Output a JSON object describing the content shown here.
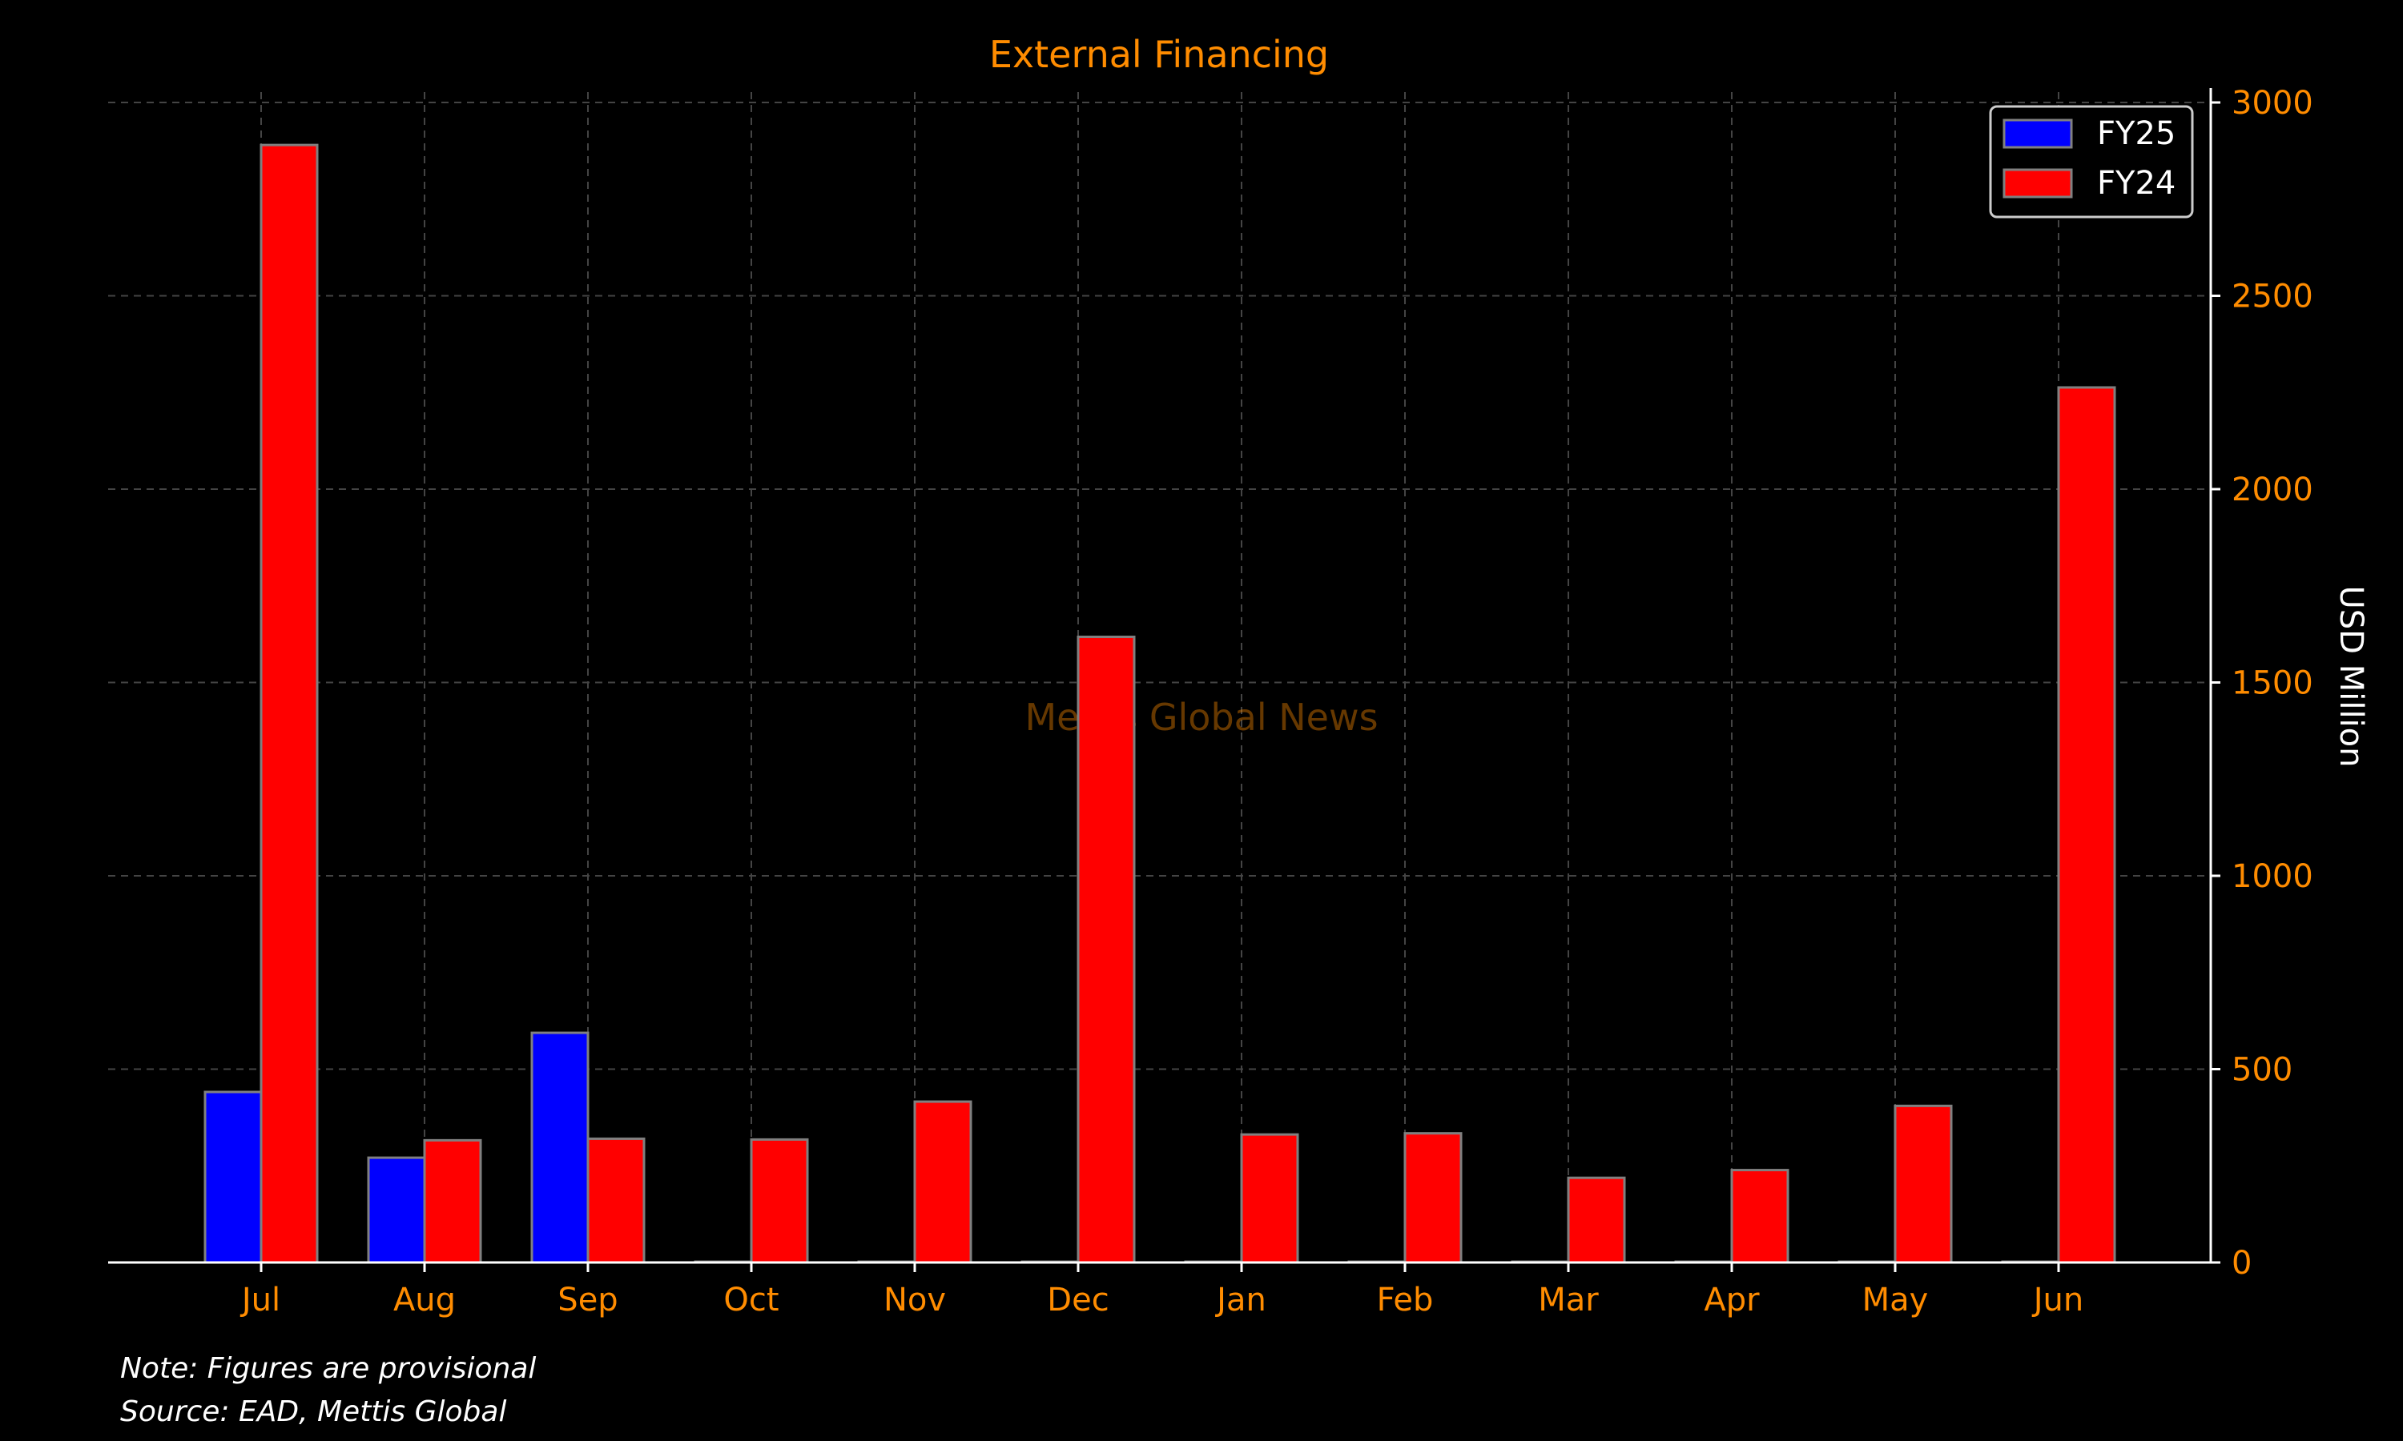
{
  "chart_data": {
    "type": "bar",
    "title": "External Financing",
    "xlabel": "",
    "ylabel": "USD Million",
    "watermark": "Mettis Global News",
    "categories": [
      "Jul",
      "Aug",
      "Sep",
      "Oct",
      "Nov",
      "Dec",
      "Jan",
      "Feb",
      "Mar",
      "Apr",
      "May",
      "Jun"
    ],
    "series": [
      {
        "name": "FY25",
        "color": "#0000ff",
        "values": [
          441,
          271,
          594,
          0,
          0,
          0,
          0,
          0,
          0,
          0,
          0,
          0
        ]
      },
      {
        "name": "FY24",
        "color": "#ff0000",
        "values": [
          2890,
          316,
          320,
          318,
          416,
          1618,
          331,
          334,
          219,
          239,
          405,
          2263
        ]
      }
    ],
    "ylim": [
      0,
      3000
    ],
    "yticks": [
      0,
      500,
      1000,
      1500,
      2000,
      2500,
      3000
    ],
    "y_axis_side": "right",
    "grid": true,
    "legend_position": "top-right",
    "colors": {
      "background": "#000000",
      "accent": "#ff8c00",
      "text": "#ffffff",
      "grid": "#444444",
      "bar_edge": "#808080"
    }
  },
  "footer": {
    "note": "Note: Figures are provisional",
    "source": "Source: EAD, Mettis Global"
  }
}
